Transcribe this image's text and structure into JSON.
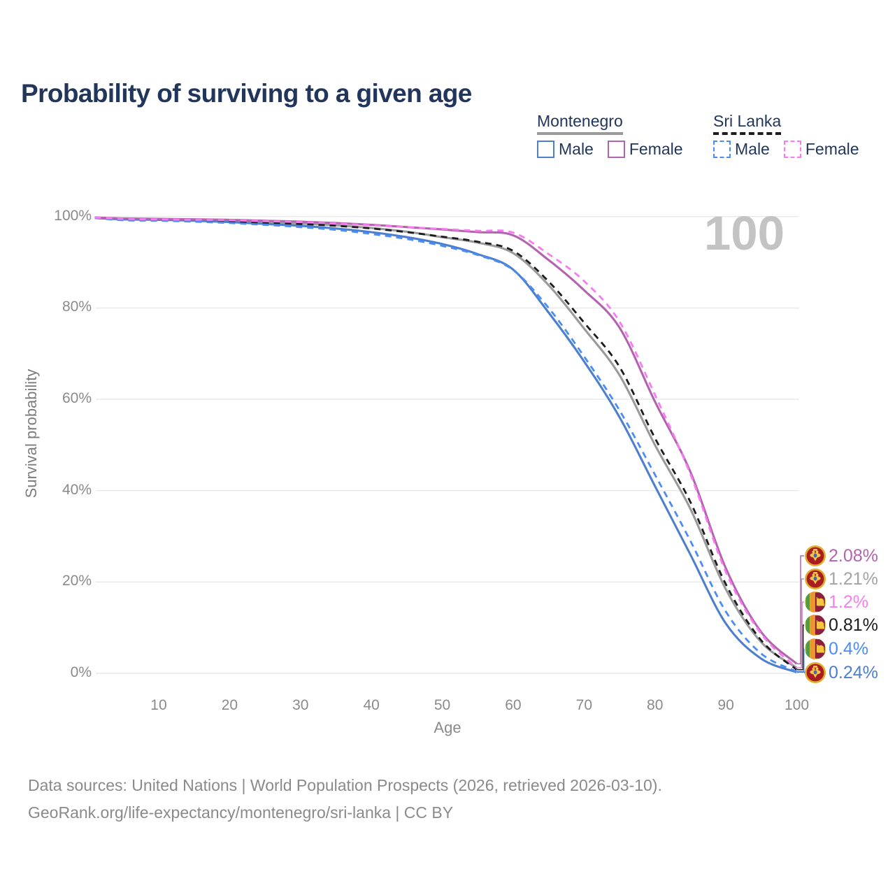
{
  "title": "Probability of surviving to a given age",
  "legend": {
    "groups": [
      {
        "title": "Montenegro",
        "line_style": "solid",
        "line_color": "#9a9a9a",
        "items": [
          {
            "label": "Male",
            "color": "#4d7fce",
            "style": "solid"
          },
          {
            "label": "Female",
            "color": "#b264ae",
            "style": "solid"
          }
        ]
      },
      {
        "title": "Sri Lanka",
        "line_style": "dashed",
        "line_color": "#1c1c1c",
        "items": [
          {
            "label": "Male",
            "color": "#4b8df5",
            "style": "dashed"
          },
          {
            "label": "Female",
            "color": "#f97bf2",
            "style": "dashed"
          }
        ]
      }
    ]
  },
  "chart_data": {
    "type": "line",
    "title": "Probability of surviving to a given age",
    "xlabel": "Age",
    "ylabel": "Survival probability",
    "xlim": [
      1,
      100
    ],
    "ylim": [
      0,
      100
    ],
    "grid": "horizontal",
    "x_ticks": [
      10,
      20,
      30,
      40,
      50,
      60,
      70,
      80,
      90,
      100
    ],
    "y_ticks": [
      0,
      20,
      40,
      60,
      80,
      100
    ],
    "y_tick_suffix": "%",
    "hover_value": "100",
    "ages": [
      1,
      5,
      10,
      15,
      20,
      25,
      30,
      35,
      40,
      45,
      50,
      55,
      60,
      65,
      70,
      75,
      80,
      85,
      90,
      95,
      100
    ],
    "series": [
      {
        "id": "montenegro-total",
        "name": "Montenegro",
        "country": "Montenegro",
        "sex": "Both",
        "color": "#9a9a9a",
        "style": "solid",
        "end_label": "1.21%",
        "values": [
          99.8,
          99.5,
          99.4,
          99.3,
          99.1,
          98.8,
          98.5,
          98.1,
          97.5,
          96.7,
          95.5,
          94.3,
          92.0,
          85.0,
          75.5,
          65.3,
          50.0,
          36.0,
          18.4,
          6.8,
          1.21
        ]
      },
      {
        "id": "montenegro-male",
        "name": "Montenegro Male",
        "country": "Montenegro",
        "sex": "Male",
        "color": "#4d7fce",
        "style": "solid",
        "end_label": "0.24%",
        "values": [
          99.7,
          99.4,
          99.3,
          99.1,
          98.8,
          98.4,
          98.0,
          97.4,
          96.6,
          95.5,
          94.0,
          91.8,
          88.4,
          79.0,
          68.3,
          56.1,
          41.0,
          26.0,
          10.9,
          3.2,
          0.24
        ]
      },
      {
        "id": "montenegro-female",
        "name": "Montenegro Female",
        "country": "Montenegro",
        "sex": "Female",
        "color": "#b264ae",
        "style": "solid",
        "end_label": "2.08%",
        "values": [
          99.8,
          99.6,
          99.5,
          99.4,
          99.3,
          99.1,
          98.9,
          98.6,
          98.2,
          97.7,
          97.2,
          96.6,
          95.9,
          90.5,
          83.9,
          75.7,
          59.5,
          44.1,
          23.0,
          9.0,
          2.08
        ]
      },
      {
        "id": "sri-lanka-total",
        "name": "Sri Lanka",
        "country": "Sri Lanka",
        "sex": "Both",
        "color": "#1c1c1c",
        "style": "dashed",
        "end_label": "0.81%",
        "values": [
          99.8,
          99.3,
          99.2,
          99.1,
          98.9,
          98.7,
          98.4,
          98.0,
          97.4,
          96.6,
          95.6,
          94.5,
          92.5,
          85.8,
          76.8,
          67.1,
          51.5,
          37.5,
          19.5,
          7.2,
          0.81
        ]
      },
      {
        "id": "sri-lanka-male",
        "name": "Sri Lanka Male",
        "country": "Sri Lanka",
        "sex": "Male",
        "color": "#4b8df5",
        "style": "dashed",
        "end_label": "0.4%",
        "values": [
          99.7,
          99.2,
          99.1,
          98.9,
          98.6,
          98.2,
          97.7,
          97.1,
          96.2,
          95.1,
          93.6,
          91.6,
          88.3,
          80.0,
          69.4,
          57.6,
          43.5,
          29.0,
          13.5,
          4.3,
          0.4
        ]
      },
      {
        "id": "sri-lanka-female",
        "name": "Sri Lanka Female",
        "country": "Sri Lanka",
        "sex": "Female",
        "color": "#f97bf2",
        "style": "dashed",
        "end_label": "1.2%",
        "values": [
          99.8,
          99.5,
          99.4,
          99.3,
          99.2,
          99.0,
          98.8,
          98.5,
          98.1,
          97.7,
          97.3,
          96.9,
          96.5,
          91.8,
          85.9,
          77.0,
          61.0,
          43.6,
          22.2,
          8.6,
          1.2
        ]
      }
    ],
    "end_labels": [
      {
        "text": "2.08%",
        "value": 2.08,
        "color": "#b264ae",
        "flag": "montenegro"
      },
      {
        "text": "1.21%",
        "value": 1.21,
        "color": "#a3a3a3",
        "flag": "montenegro"
      },
      {
        "text": "1.2%",
        "value": 1.2,
        "color": "#f97bf2",
        "flag": "sri-lanka"
      },
      {
        "text": "0.81%",
        "value": 0.81,
        "color": "#1c1c1c",
        "flag": "sri-lanka"
      },
      {
        "text": "0.4%",
        "value": 0.4,
        "color": "#4b8df5",
        "flag": "sri-lanka"
      },
      {
        "text": "0.24%",
        "value": 0.24,
        "color": "#4d7fce",
        "flag": "montenegro"
      }
    ],
    "flag_colors": {
      "montenegro": {
        "ring": "#e2ae2e",
        "field": "#a81c22",
        "emblem": "#f3c64a",
        "shield": "#4a66b0"
      },
      "sri_lanka": {
        "gold": "#f5c63e",
        "green": "#4c9e45",
        "orange": "#ef9230",
        "maroon": "#8e1f3c"
      }
    }
  },
  "colors": {
    "title": "#22365c",
    "axis_text": "#8a8a8a",
    "grid": "#e8e8e8",
    "watermark": "#c3c3c3",
    "footer": "#8a8a8a"
  },
  "footer": {
    "line1": "Data sources: United Nations | World Population Prospects (2026, retrieved 2026-03-10).",
    "line2": "GeoRank.org/life-expectancy/montenegro/sri-lanka | CC BY"
  }
}
